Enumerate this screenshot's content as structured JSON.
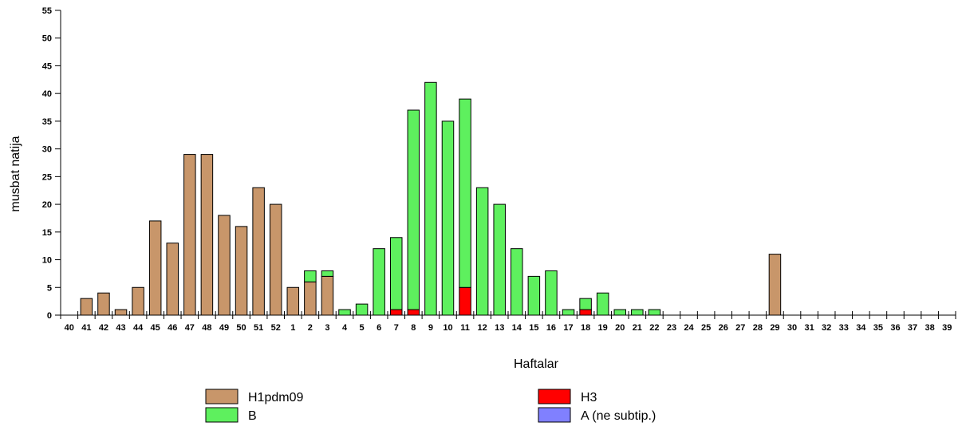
{
  "chart_data": {
    "type": "bar",
    "stacked": true,
    "title": "",
    "xlabel": "Haftalar",
    "ylabel": "musbat natija",
    "ylim": [
      0,
      55
    ],
    "yticks": [
      0,
      5,
      10,
      15,
      20,
      25,
      30,
      35,
      40,
      45,
      50,
      55
    ],
    "grid": false,
    "legend_position": "bottom",
    "categories": [
      "40",
      "41",
      "42",
      "43",
      "44",
      "45",
      "46",
      "47",
      "48",
      "49",
      "50",
      "51",
      "52",
      "1",
      "2",
      "3",
      "4",
      "5",
      "6",
      "7",
      "8",
      "9",
      "10",
      "11",
      "12",
      "13",
      "14",
      "15",
      "16",
      "17",
      "18",
      "19",
      "20",
      "21",
      "22",
      "23",
      "24",
      "25",
      "26",
      "27",
      "28",
      "29",
      "30",
      "31",
      "32",
      "33",
      "34",
      "35",
      "36",
      "37",
      "38",
      "39"
    ],
    "series": [
      {
        "name": "H1pdm09",
        "color": "#c8966a",
        "values": [
          0,
          3,
          4,
          1,
          5,
          17,
          13,
          29,
          29,
          18,
          16,
          23,
          20,
          5,
          6,
          7,
          0,
          0,
          0,
          0,
          0,
          0,
          0,
          0,
          0,
          0,
          0,
          0,
          0,
          0,
          0,
          0,
          0,
          0,
          0,
          0,
          0,
          0,
          0,
          0,
          0,
          11,
          0,
          0,
          0,
          0,
          0,
          0,
          0,
          0,
          0,
          0
        ]
      },
      {
        "name": "H3",
        "color": "#ff0000",
        "values": [
          0,
          0,
          0,
          0,
          0,
          0,
          0,
          0,
          0,
          0,
          0,
          0,
          0,
          0,
          0,
          0,
          0,
          0,
          0,
          1,
          1,
          0,
          0,
          5,
          0,
          0,
          0,
          0,
          0,
          0,
          1,
          0,
          0,
          0,
          0,
          0,
          0,
          0,
          0,
          0,
          0,
          0,
          0,
          0,
          0,
          0,
          0,
          0,
          0,
          0,
          0,
          0
        ]
      },
      {
        "name": "B",
        "color": "#5ef05e",
        "values": [
          0,
          0,
          0,
          0,
          0,
          0,
          0,
          0,
          0,
          0,
          0,
          0,
          0,
          0,
          2,
          1,
          1,
          2,
          12,
          13,
          36,
          42,
          35,
          34,
          23,
          20,
          12,
          7,
          8,
          1,
          2,
          4,
          1,
          1,
          1,
          0,
          0,
          0,
          0,
          0,
          0,
          0,
          0,
          0,
          0,
          0,
          0,
          0,
          0,
          0,
          0,
          0
        ]
      },
      {
        "name": "A (ne subtip.)",
        "color": "#8080ff",
        "values": [
          0,
          0,
          0,
          0,
          0,
          0,
          0,
          0,
          0,
          0,
          0,
          0,
          0,
          0,
          0,
          0,
          0,
          0,
          0,
          0,
          0,
          0,
          0,
          0,
          0,
          0,
          0,
          0,
          0,
          0,
          0,
          0,
          0,
          0,
          0,
          0,
          0,
          0,
          0,
          0,
          0,
          0,
          0,
          0,
          0,
          0,
          0,
          0,
          0,
          0,
          0,
          0
        ]
      }
    ],
    "legend_order": [
      "H1pdm09",
      "H3",
      "B",
      "A (ne subtip.)"
    ]
  }
}
